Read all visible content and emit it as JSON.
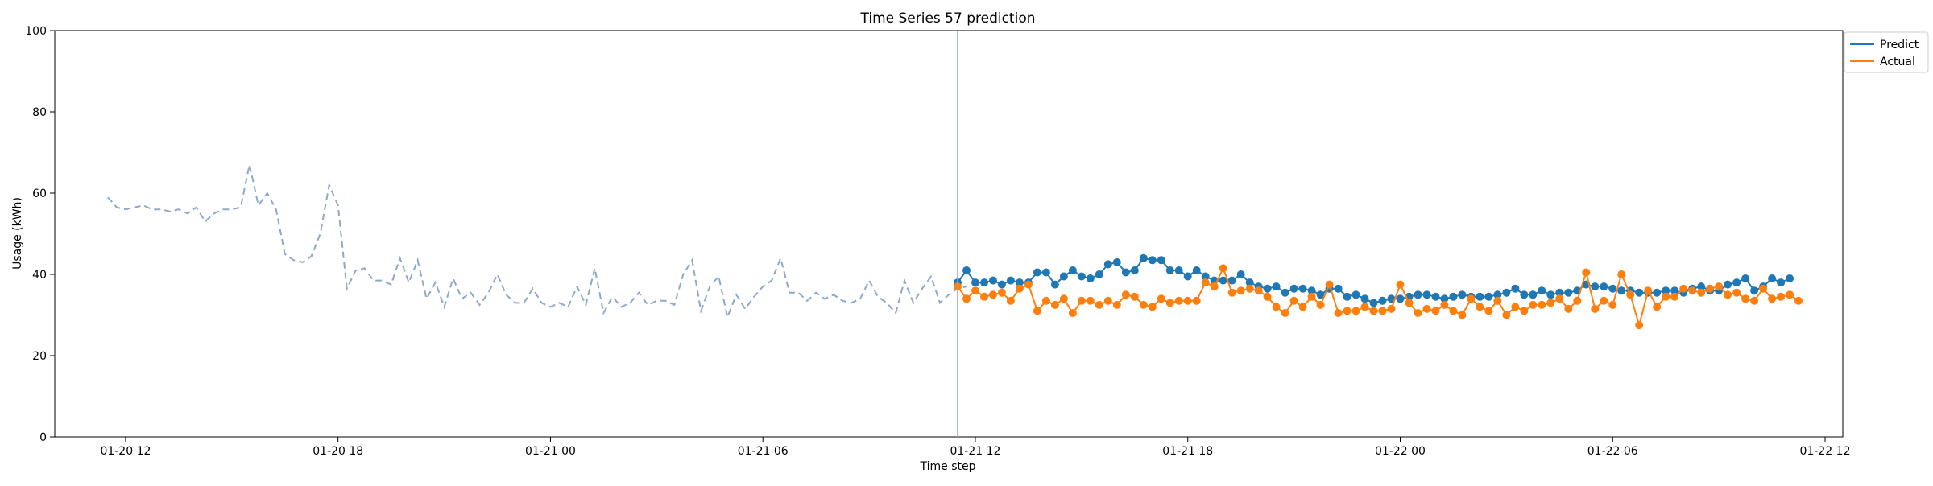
{
  "chart_data": {
    "type": "line",
    "title": "Time Series 57 prediction",
    "xlabel": "Time step",
    "ylabel": "Usage (kWh)",
    "ylim": [
      0,
      100
    ],
    "xlim": [
      "2024-01-20 10:00",
      "2024-01-22 12:30"
    ],
    "grid": false,
    "legend_position": "top-right outside",
    "x_ticks": [
      {
        "t": "2024-01-20 12:00",
        "label": "01-20 12"
      },
      {
        "t": "2024-01-20 18:00",
        "label": "01-20 18"
      },
      {
        "t": "2024-01-21 00:00",
        "label": "01-21 00"
      },
      {
        "t": "2024-01-21 06:00",
        "label": "01-21 06"
      },
      {
        "t": "2024-01-21 12:00",
        "label": "01-21 12"
      },
      {
        "t": "2024-01-21 18:00",
        "label": "01-21 18"
      },
      {
        "t": "2024-01-22 00:00",
        "label": "01-22 00"
      },
      {
        "t": "2024-01-22 06:00",
        "label": "01-22 06"
      },
      {
        "t": "2024-01-22 12:00",
        "label": "01-22 12"
      }
    ],
    "y_ticks": [
      0,
      20,
      40,
      60,
      80,
      100
    ],
    "forecast_start": "2024-01-21 11:30",
    "history_style": {
      "color": "#8fa8c8",
      "dash": "dashed"
    },
    "history": {
      "start": "2024-01-20 11:30",
      "step_minutes": 15,
      "values": [
        59,
        56.5,
        56,
        56.5,
        57,
        56,
        56,
        55.5,
        56,
        55,
        56.5,
        53,
        55,
        56,
        56,
        56.5,
        67,
        57,
        60,
        56,
        45,
        43.5,
        43,
        44.5,
        50,
        62,
        57,
        36.5,
        41,
        41.5,
        38.5,
        38.5,
        37.5,
        44,
        38,
        43.5,
        34,
        38,
        32,
        39,
        34,
        35.5,
        32.5,
        35.5,
        40,
        35,
        33,
        33,
        36.5,
        33,
        32,
        33,
        32,
        37,
        32.5,
        41.5,
        30.5,
        34.5,
        32,
        33,
        35.5,
        32.5,
        33.5,
        33.5,
        32.5,
        40,
        43.5,
        31,
        37,
        39.5,
        29.5,
        35,
        31.5,
        34.5,
        37,
        38.5,
        44,
        35.5,
        35.5,
        33.5,
        35.5,
        34,
        35,
        33.5,
        33,
        34,
        38.5,
        34.5,
        33,
        30.5,
        38.5,
        33,
        36.5,
        39.5,
        33,
        35,
        36.5,
        37
      ]
    },
    "series": [
      {
        "name": "Predict",
        "color": "#1f77b4",
        "start": "2024-01-21 11:30",
        "step_minutes": 15,
        "values": [
          38,
          41,
          38,
          38,
          38.5,
          37.5,
          38.5,
          38,
          38,
          40.5,
          40.5,
          37.5,
          39.5,
          41,
          39.5,
          39,
          40,
          42.5,
          43,
          40.5,
          41,
          44,
          43.5,
          43.5,
          41,
          41,
          39.5,
          41,
          39.5,
          38.5,
          38.5,
          38.5,
          40,
          38,
          37,
          36.5,
          37,
          35.5,
          36.5,
          36.5,
          36,
          35,
          36.5,
          36.5,
          34.5,
          35,
          34,
          33,
          33.5,
          34,
          34,
          34.5,
          35,
          35,
          34.5,
          34,
          34.5,
          35,
          34.5,
          34.5,
          34.5,
          35,
          35.5,
          36.5,
          35,
          35,
          36,
          35,
          35.5,
          35.5,
          36,
          37.5,
          37,
          37,
          36.5,
          36,
          36,
          35.5,
          35.5,
          35.5,
          36,
          36,
          35.5,
          36.5,
          37,
          36,
          36,
          37.5,
          38,
          39,
          36,
          37,
          39,
          38,
          39
        ]
      },
      {
        "name": "Actual",
        "color": "#ff7f0e",
        "start": "2024-01-21 11:30",
        "step_minutes": 15,
        "values": [
          37,
          34,
          36,
          34.5,
          35,
          35.5,
          33.5,
          36.5,
          37.5,
          31,
          33.5,
          32.5,
          34,
          30.5,
          33.5,
          33.5,
          32.5,
          33.5,
          32.5,
          35,
          34.5,
          32.5,
          32,
          34,
          33,
          33.5,
          33.5,
          33.5,
          38,
          37,
          41.5,
          35.5,
          36,
          36.5,
          36,
          34.5,
          32,
          30.5,
          33.5,
          32,
          34.5,
          32.5,
          37.5,
          30.5,
          31,
          31,
          32,
          31,
          31,
          31.5,
          37.5,
          33,
          30.5,
          31.5,
          31,
          32.5,
          31,
          30,
          34,
          32,
          31,
          33.5,
          30,
          32,
          31,
          32.5,
          32.5,
          33,
          34,
          31.5,
          33.5,
          40.5,
          31.5,
          33.5,
          32.5,
          40,
          35,
          27.5,
          36,
          32,
          34.5,
          34.5,
          36.5,
          36,
          35.5,
          36.5,
          37,
          35,
          35.5,
          34,
          33.5,
          36.5,
          34,
          34.5,
          35,
          33.5
        ]
      }
    ]
  }
}
